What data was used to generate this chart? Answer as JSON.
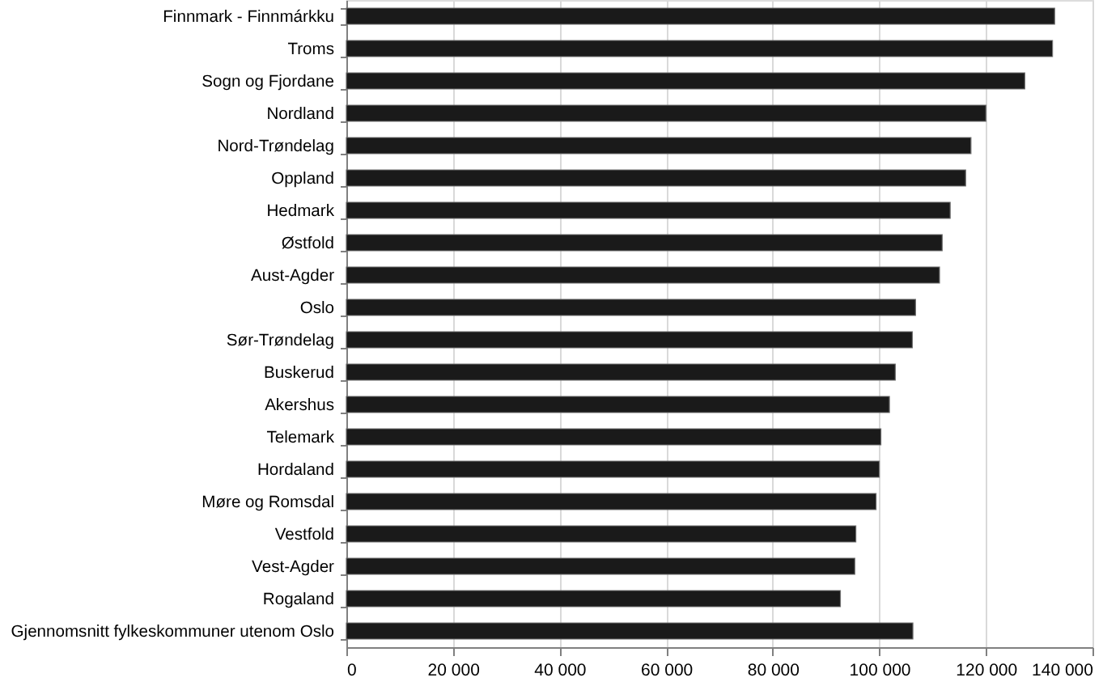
{
  "chart_data": {
    "type": "bar",
    "orientation": "horizontal",
    "categories": [
      "Finnmark - Finnmárkku",
      "Troms",
      "Sogn og Fjordane",
      "Nordland",
      "Nord-Trøndelag",
      "Oppland",
      "Hedmark",
      "Østfold",
      "Aust-Agder",
      "Oslo",
      "Sør-Trøndelag",
      "Buskerud",
      "Akershus",
      "Telemark",
      "Hordaland",
      "Møre og Romsdal",
      "Vestfold",
      "Vest-Agder",
      "Rogaland",
      "Gjennomsnitt fylkeskommuner utenom Oslo"
    ],
    "values": [
      132900,
      132500,
      127300,
      120000,
      117200,
      116200,
      113300,
      111800,
      111300,
      106800,
      106200,
      103000,
      101900,
      100300,
      100000,
      99400,
      95600,
      95400,
      92700,
      106300
    ],
    "color": "#1a1a1a",
    "xlim": [
      0,
      140000
    ],
    "xticks": [
      0,
      {
        "value": 20000,
        "label": "20 000"
      },
      {
        "value": 40000,
        "label": "40 000"
      },
      {
        "value": 60000,
        "label": "60 000"
      },
      {
        "value": 80000,
        "label": "80 000"
      },
      {
        "value": 100000,
        "label": "100 000"
      },
      {
        "value": 120000,
        "label": "120 000"
      },
      {
        "value": 140000,
        "label": "140 000"
      }
    ],
    "grid": "x"
  }
}
